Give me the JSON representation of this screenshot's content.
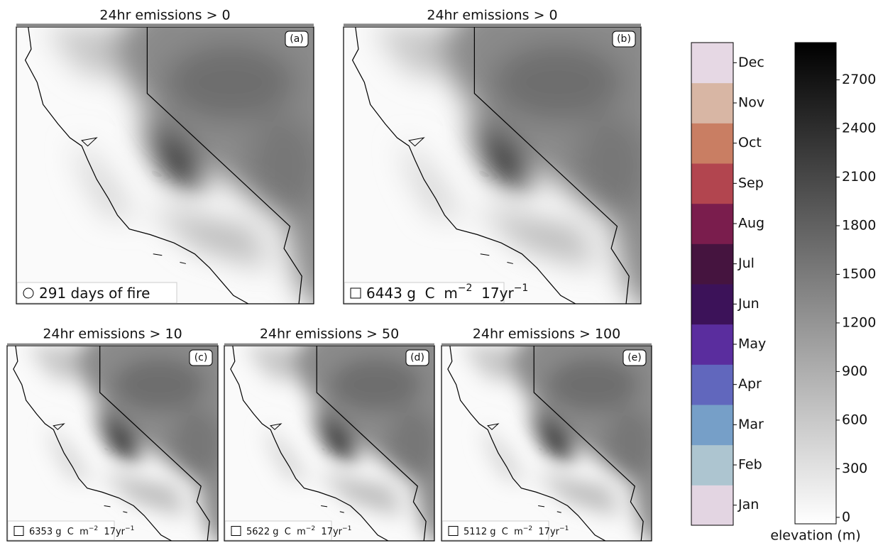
{
  "panels": [
    {
      "title": "24hr emissions > 0",
      "label": "(a)",
      "legend": {
        "marker": "circle",
        "parts": [
          "291 days of fire"
        ]
      }
    },
    {
      "title": "24hr emissions > 0",
      "label": "(b)",
      "legend": {
        "marker": "square",
        "parts": [
          "6443 g  C  m",
          "−2",
          "  17yr",
          "−1"
        ]
      }
    },
    {
      "title": "24hr emissions > 10",
      "label": "(c)",
      "legend": {
        "marker": "square",
        "parts": [
          "6353 g  C  m",
          "−2",
          "  17yr",
          "−1"
        ]
      }
    },
    {
      "title": "24hr emissions > 50",
      "label": "(d)",
      "legend": {
        "marker": "square",
        "parts": [
          "5622 g  C  m",
          "−2",
          "  17yr",
          "−1"
        ]
      }
    },
    {
      "title": "24hr emissions > 100",
      "label": "(e)",
      "legend": {
        "marker": "square",
        "parts": [
          "5112 g  C  m",
          "−2",
          "  17yr",
          "−1"
        ]
      }
    }
  ],
  "month_colorbar": {
    "categories": [
      "Jan",
      "Feb",
      "Mar",
      "Apr",
      "May",
      "Jun",
      "Jul",
      "Aug",
      "Sep",
      "Oct",
      "Nov",
      "Dec"
    ],
    "colors": [
      "#e3d5e2",
      "#adc5d0",
      "#769fc8",
      "#6167bd",
      "#5a2d9e",
      "#3c1259",
      "#45143f",
      "#7a1d4d",
      "#b2454f",
      "#c97e63",
      "#d8b6a4",
      "#e6d8e4"
    ]
  },
  "elevation_colorbar": {
    "label": "elevation (m)",
    "ylim": [
      -40,
      2930
    ],
    "yticks": [
      0,
      300,
      600,
      900,
      1200,
      1500,
      1800,
      2100,
      2400,
      2700
    ],
    "colors": [
      "#ffffff",
      "#000000"
    ]
  }
}
